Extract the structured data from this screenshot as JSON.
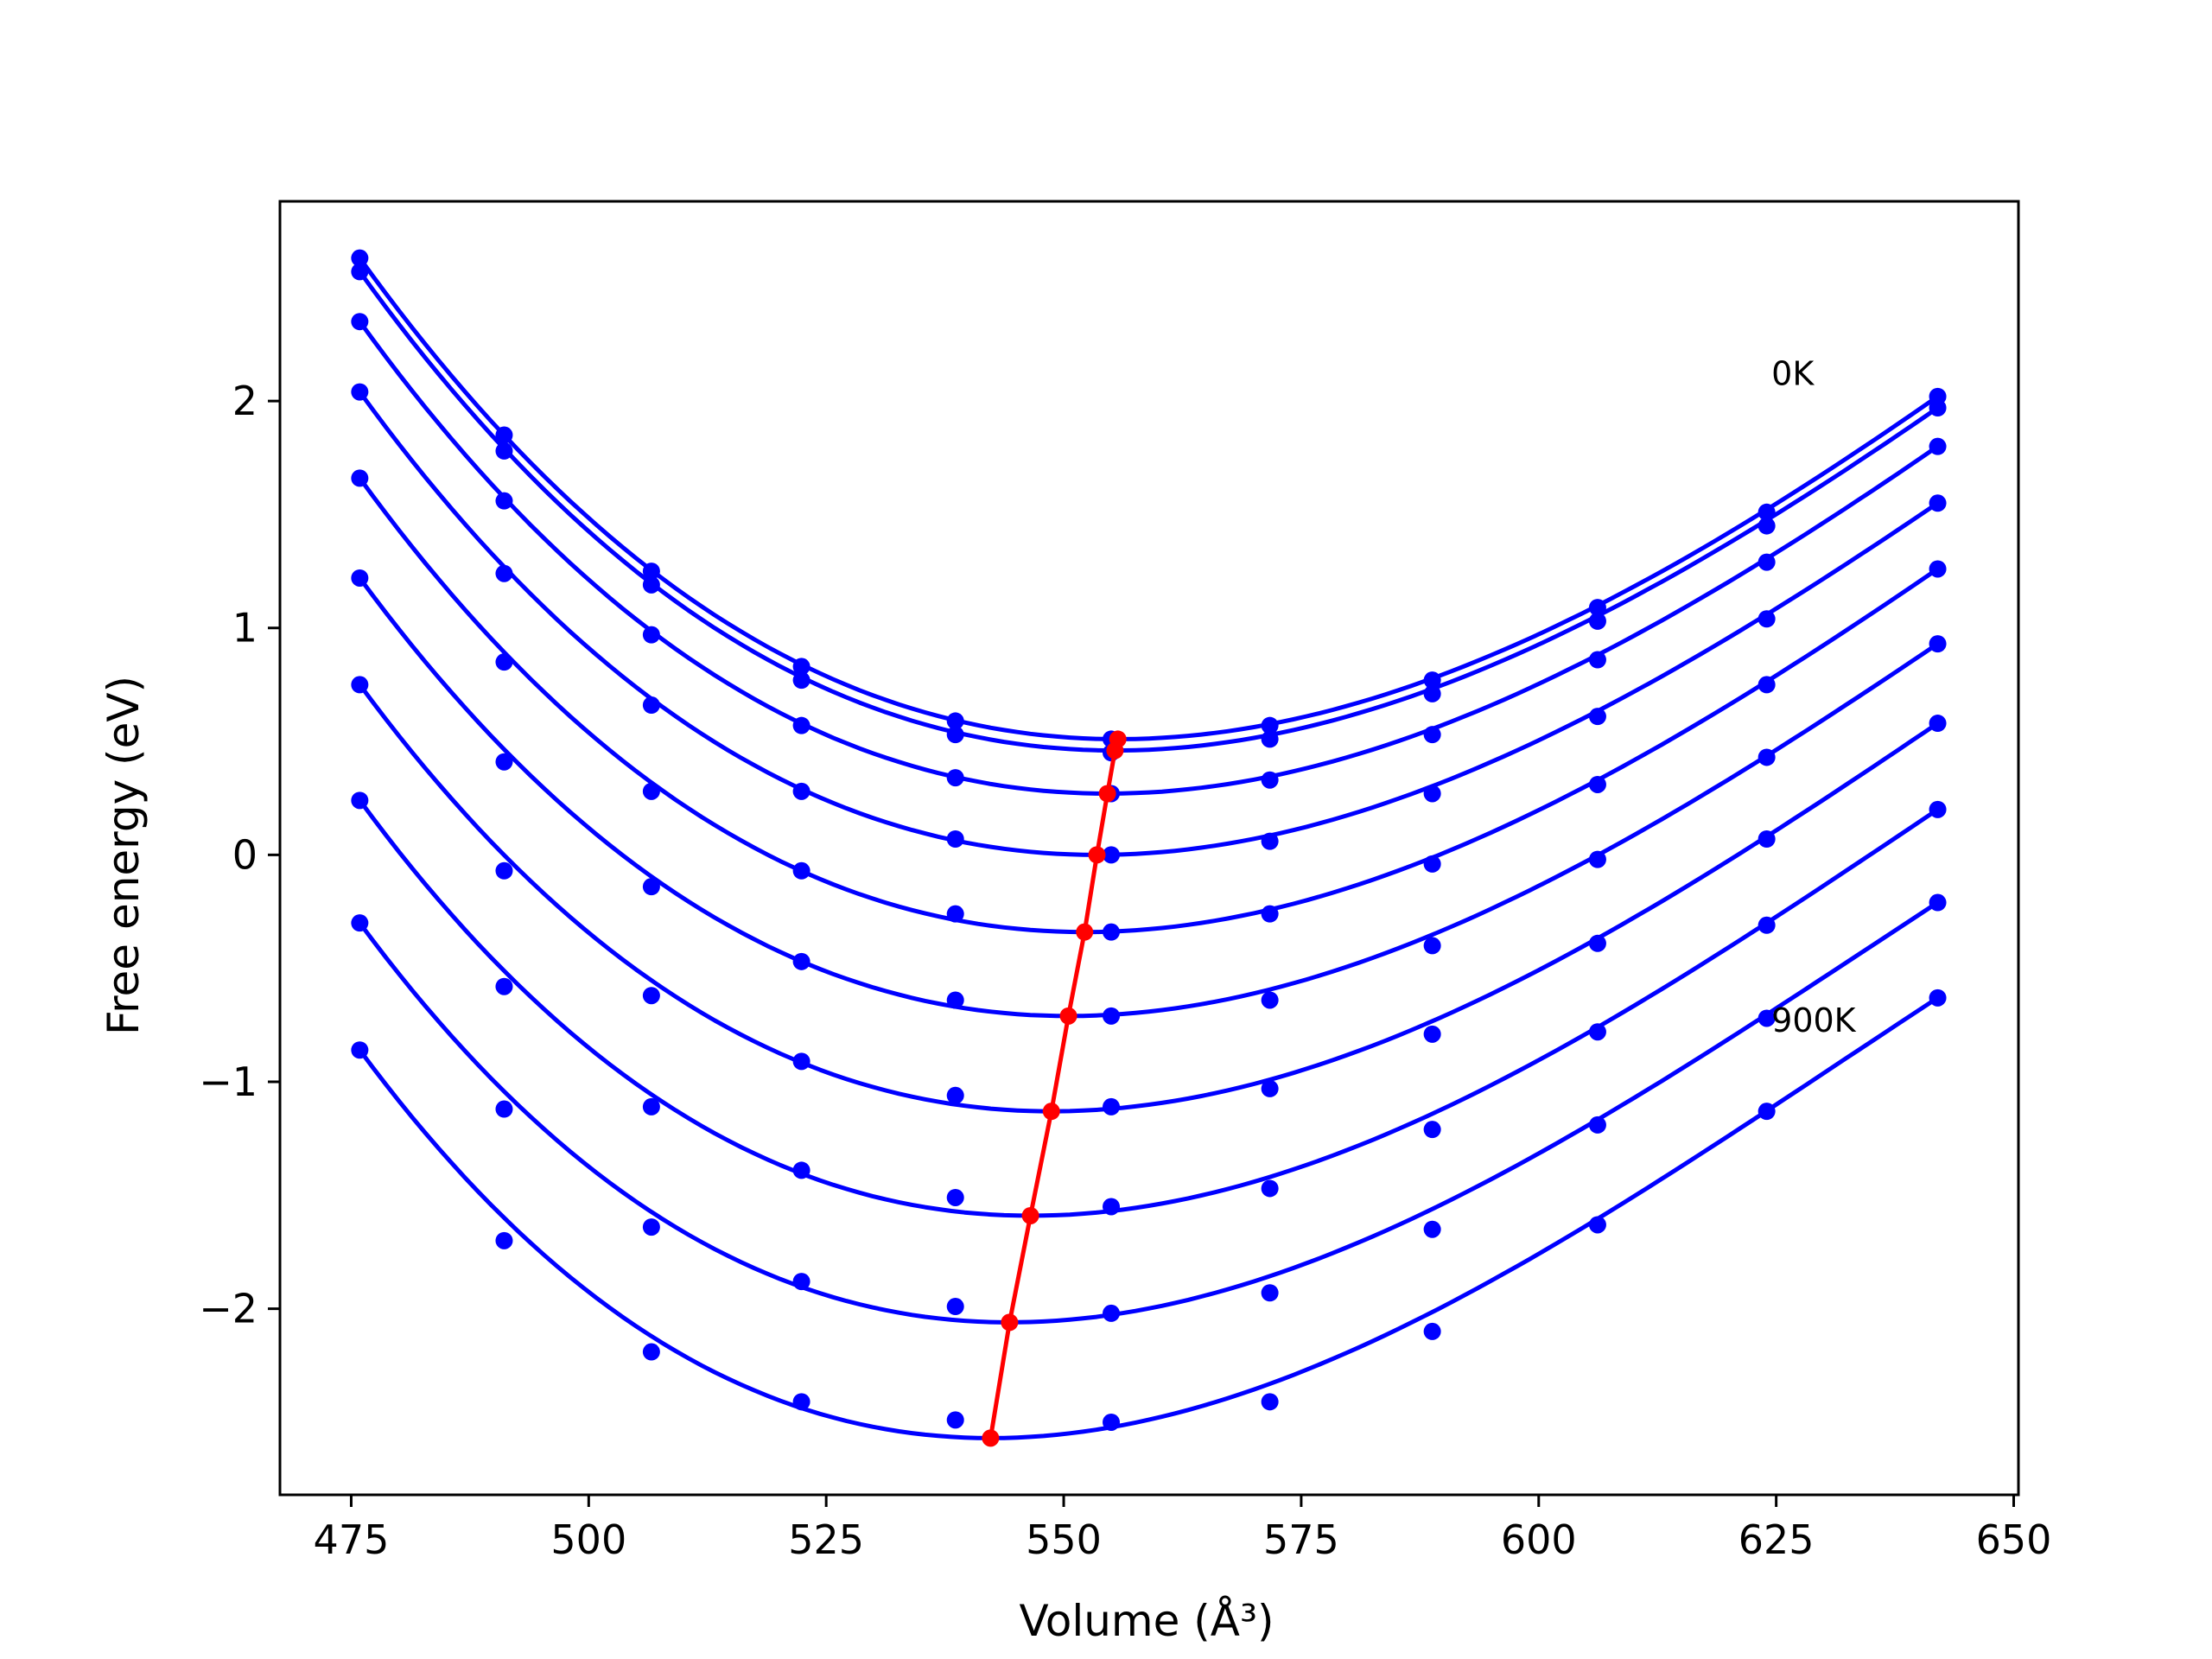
{
  "chart_data": {
    "type": "line",
    "xlabel": "Volume (Å³)",
    "ylabel": "Free energy (eV)",
    "xlim": [
      467.5,
      650.5
    ],
    "ylim": [
      -2.82,
      2.88
    ],
    "x_ticks": [
      475,
      500,
      525,
      550,
      575,
      600,
      625,
      650
    ],
    "y_ticks": [
      -2,
      -1,
      0,
      1,
      2
    ],
    "x_tick_labels": [
      "475",
      "500",
      "525",
      "550",
      "575",
      "600",
      "625",
      "650"
    ],
    "y_tick_labels": [
      "−2",
      "−1",
      "0",
      "1",
      "2"
    ],
    "grid": false,
    "colors": {
      "curves": "#0000ff",
      "minimum_path": "#ff0000",
      "axes": "#000000"
    },
    "annotations": [
      {
        "text": "0K",
        "x": 624.5,
        "y": 2.07
      },
      {
        "text": "900K",
        "x": 624.5,
        "y": -0.78
      }
    ],
    "x": [
      475.9,
      491.1,
      506.6,
      522.4,
      538.6,
      555.0,
      571.7,
      588.8,
      606.2,
      624.0,
      642.0
    ],
    "series": [
      {
        "points": [
          2.63,
          1.85,
          1.25,
          0.83,
          0.59,
          0.51,
          0.57,
          0.77,
          1.09,
          1.51,
          2.02
        ],
        "fit_min": [
          555.7,
          0.51
        ]
      },
      {
        "points": [
          2.57,
          1.78,
          1.19,
          0.77,
          0.53,
          0.45,
          0.51,
          0.71,
          1.03,
          1.45,
          1.97
        ],
        "fit_min": [
          555.4,
          0.46
        ]
      },
      {
        "points": [
          2.35,
          1.56,
          0.97,
          0.57,
          0.34,
          0.27,
          0.33,
          0.53,
          0.86,
          1.29,
          1.8
        ],
        "fit_min": [
          554.6,
          0.27
        ]
      },
      {
        "points": [
          2.04,
          1.24,
          0.66,
          0.28,
          0.07,
          0.0,
          0.06,
          0.27,
          0.61,
          1.04,
          1.55
        ],
        "fit_min": [
          553.5,
          0.0
        ]
      },
      {
        "points": [
          1.66,
          0.85,
          0.28,
          -0.07,
          -0.26,
          -0.34,
          -0.26,
          -0.04,
          0.31,
          0.75,
          1.26
        ],
        "fit_min": [
          552.2,
          -0.34
        ]
      },
      {
        "points": [
          1.22,
          0.41,
          -0.14,
          -0.47,
          -0.64,
          -0.71,
          -0.64,
          -0.4,
          -0.02,
          0.43,
          0.93
        ],
        "fit_min": [
          550.5,
          -0.71
        ]
      },
      {
        "points": [
          0.75,
          -0.07,
          -0.62,
          -0.91,
          -1.06,
          -1.11,
          -1.03,
          -0.79,
          -0.39,
          0.07,
          0.58
        ],
        "fit_min": [
          548.7,
          -1.13
        ]
      },
      {
        "points": [
          0.24,
          -0.58,
          -1.11,
          -1.39,
          -1.51,
          -1.55,
          -1.47,
          -1.21,
          -0.78,
          -0.31,
          0.2
        ],
        "fit_min": [
          546.5,
          -1.59
        ]
      },
      {
        "points": [
          -0.3,
          -1.12,
          -1.64,
          -1.88,
          -1.99,
          -2.02,
          -1.93,
          -1.65,
          -1.19,
          -0.72,
          -0.21
        ],
        "fit_min": [
          544.3,
          -2.06
        ]
      },
      {
        "points": [
          -0.86,
          -1.7,
          -2.19,
          -2.41,
          -2.49,
          -2.5,
          -2.41,
          -2.1,
          -1.63,
          -1.13,
          -0.63
        ],
        "fit_min": [
          542.3,
          -2.57
        ]
      }
    ],
    "minimum_path": {
      "x": [
        555.7,
        555.4,
        554.6,
        553.5,
        552.2,
        550.5,
        548.7,
        546.5,
        544.3,
        542.3
      ],
      "y": [
        0.51,
        0.46,
        0.27,
        0.0,
        -0.34,
        -0.71,
        -1.13,
        -1.59,
        -2.06,
        -2.57
      ]
    }
  }
}
